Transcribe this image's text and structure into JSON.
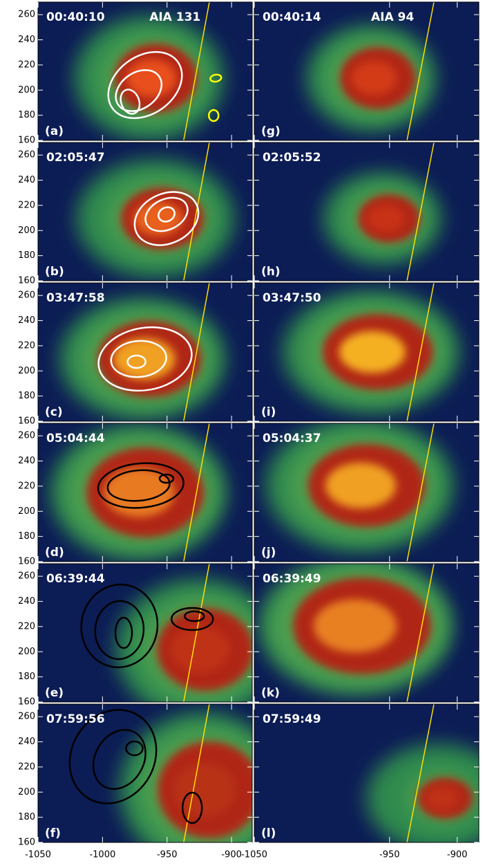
{
  "figure": {
    "xlim": [
      -1050,
      -884
    ],
    "ylim": [
      160,
      270
    ],
    "yticks": [
      160,
      180,
      200,
      220,
      240,
      260
    ],
    "left_xticks": [
      -1050,
      -1000,
      -950,
      -900
    ],
    "right_xticks": [
      -1050,
      -950,
      -900
    ],
    "panels": [
      {
        "time": "00:40:10",
        "label": "(a)",
        "channel": "AIA 131"
      },
      {
        "time": "00:40:14",
        "label": "(g)",
        "channel": "AIA 94"
      },
      {
        "time": "02:05:47",
        "label": "(b)"
      },
      {
        "time": "02:05:52",
        "label": "(h)"
      },
      {
        "time": "03:47:58",
        "label": "(c)"
      },
      {
        "time": "03:47:50",
        "label": "(i)"
      },
      {
        "time": "05:04:44",
        "label": "(d)"
      },
      {
        "time": "05:04:37",
        "label": "(j)"
      },
      {
        "time": "06:39:44",
        "label": "(e)"
      },
      {
        "time": "06:39:49",
        "label": "(k)"
      },
      {
        "time": "07:59:56",
        "label": "(f)"
      },
      {
        "time": "07:59:49",
        "label": "(l)"
      }
    ]
  }
}
